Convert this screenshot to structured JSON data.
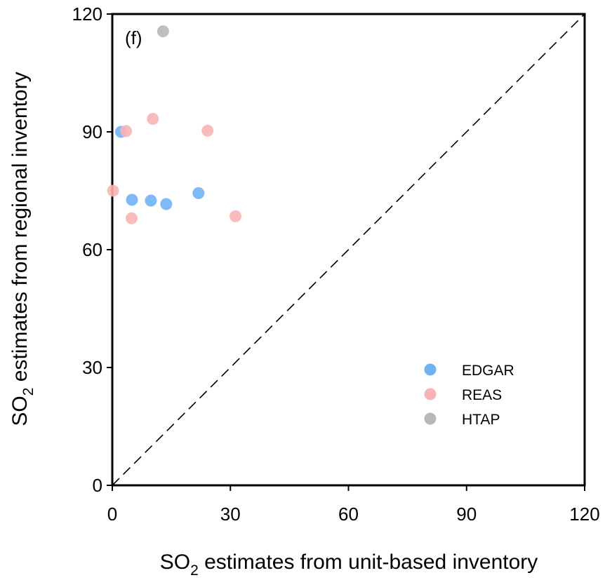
{
  "chart_data": {
    "type": "scatter",
    "panel_label": "(f)",
    "xlabel": {
      "pre": "SO",
      "sub": "2",
      "post": " estimates from unit-based inventory"
    },
    "ylabel": {
      "pre": "SO",
      "sub": "2",
      "post": " estimates from regional inventory"
    },
    "xlim": [
      0,
      120
    ],
    "ylim": [
      0,
      120
    ],
    "xticks": [
      0,
      30,
      60,
      90,
      120
    ],
    "yticks": [
      0,
      30,
      60,
      90,
      120
    ],
    "xtick_labels": [
      "0",
      "30",
      "60",
      "90",
      "120"
    ],
    "ytick_labels": [
      "0",
      "30",
      "60",
      "90",
      "120"
    ],
    "grid": false,
    "reference_line": "y = x (dashed)",
    "legend_position": "bottom-right",
    "series": [
      {
        "name": "EDGAR",
        "color": "#6fb3f5",
        "points": [
          [
            2.2,
            90.0
          ],
          [
            5.0,
            72.7
          ],
          [
            9.8,
            72.5
          ],
          [
            13.7,
            71.6
          ],
          [
            21.9,
            74.4
          ]
        ]
      },
      {
        "name": "REAS",
        "color": "#f8b4b4",
        "points": [
          [
            0.2,
            75.0
          ],
          [
            3.5,
            90.2
          ],
          [
            4.9,
            68.0
          ],
          [
            10.3,
            93.3
          ],
          [
            24.2,
            90.3
          ],
          [
            31.3,
            68.5
          ]
        ]
      },
      {
        "name": "HTAP",
        "color": "#b8b8b8",
        "points": [
          [
            12.9,
            115.6
          ]
        ]
      }
    ]
  }
}
